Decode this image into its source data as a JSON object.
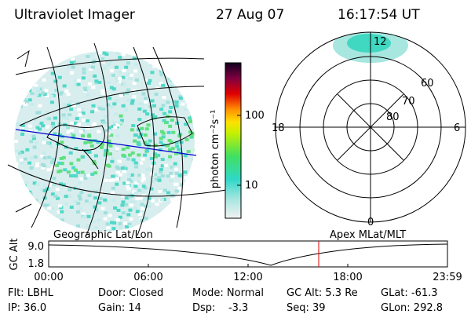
{
  "header": {
    "title": "Ultraviolet Imager",
    "date": "27 Aug 07",
    "time": "16:17:54 UT"
  },
  "colorbar": {
    "label": "photon cm⁻²s⁻¹",
    "ticks": [
      "100",
      "10"
    ]
  },
  "polar": {
    "mlt_labels": [
      "12",
      "18",
      "6",
      "0"
    ],
    "lat_labels": [
      "60",
      "70",
      "80"
    ]
  },
  "altitude_plot": {
    "left_title": "Geographic Lat/Lon",
    "right_title": "Apex MLat/MLT",
    "ylabel": "GC Alt",
    "yticks": [
      "9.0",
      "1.8"
    ],
    "xticks": [
      "00:00",
      "06:00",
      "12:00",
      "18:00",
      "23:59"
    ]
  },
  "status": {
    "rows": [
      [
        "Flt: LBHL",
        "Door: Closed",
        "Mode: Normal",
        "GC Alt: 5.3 Re",
        "GLat: -61.3"
      ],
      [
        "IP: 36.0",
        "Gain: 14",
        "Dsp:    -3.3",
        "Seq: 39",
        "GLon: 292.8"
      ]
    ]
  }
}
